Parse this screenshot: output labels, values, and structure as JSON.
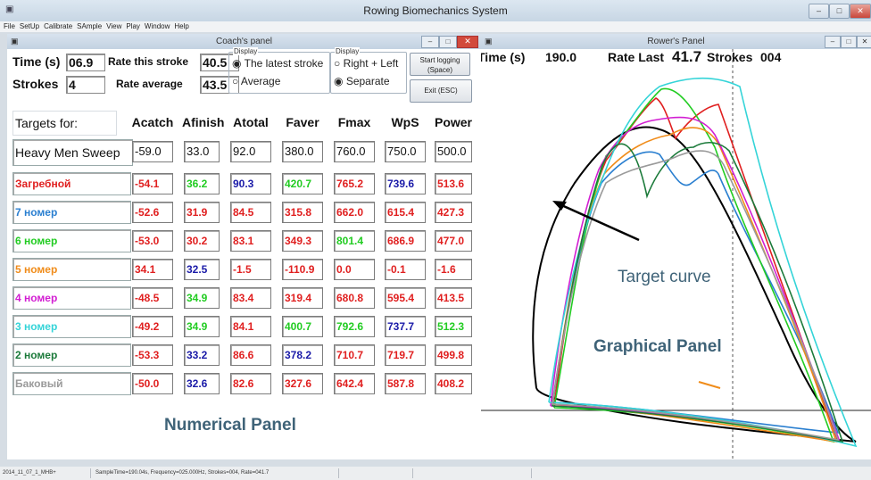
{
  "app": {
    "title": "Rowing Biomechanics System"
  },
  "menu": [
    "File",
    "SetUp",
    "Calibrate",
    "SAmple",
    "View",
    "Play",
    "Window",
    "Help"
  ],
  "coach": {
    "title": "Coach's panel",
    "time_label": "Time (s)",
    "time_value": "06.9",
    "strokes_label": "Strokes",
    "strokes_value": "4",
    "rate_this_label": "Rate this stroke",
    "rate_this_value": "40.5",
    "rate_avg_label": "Rate average",
    "rate_avg_value": "43.5",
    "display1": {
      "caption": "Display",
      "options": [
        "The latest stroke",
        "Average"
      ],
      "selected": 0
    },
    "display2": {
      "caption": "Display",
      "options": [
        "Right + Left",
        "Separate"
      ],
      "selected": 1
    },
    "start_button": "Start logging (Space)",
    "exit_button": "Exit (ESC)",
    "table": {
      "targets_label": "Targets for:",
      "columns": [
        "Acatch",
        "Afinish",
        "Atotal",
        "Faver",
        "Fmax",
        "WpS",
        "Power"
      ],
      "target_row": {
        "label": "Heavy Men Sweep",
        "values": [
          "-59.0",
          "33.0",
          "92.0",
          "380.0",
          "760.0",
          "750.0",
          "500.0"
        ]
      },
      "rows": [
        {
          "label": "Загребной",
          "label_color": "#e02020",
          "values": [
            "-54.1",
            "36.2",
            "90.3",
            "420.7",
            "765.2",
            "739.6",
            "513.6"
          ],
          "colors": [
            "#e02020",
            "#22cc22",
            "#1a1aa8",
            "#22cc22",
            "#e02020",
            "#1a1aa8",
            "#e02020"
          ]
        },
        {
          "label": "7 номер",
          "label_color": "#2a7fd0",
          "values": [
            "-52.6",
            "31.9",
            "84.5",
            "315.8",
            "662.0",
            "615.4",
            "427.3"
          ],
          "colors": [
            "#e02020",
            "#e02020",
            "#e02020",
            "#e02020",
            "#e02020",
            "#e02020",
            "#e02020"
          ]
        },
        {
          "label": "6 номер",
          "label_color": "#22cc22",
          "values": [
            "-53.0",
            "30.2",
            "83.1",
            "349.3",
            "801.4",
            "686.9",
            "477.0"
          ],
          "colors": [
            "#e02020",
            "#e02020",
            "#e02020",
            "#e02020",
            "#22cc22",
            "#e02020",
            "#e02020"
          ]
        },
        {
          "label": "5 номер",
          "label_color": "#f08c1a",
          "values": [
            "34.1",
            "32.5",
            "-1.5",
            "-110.9",
            "0.0",
            "-0.1",
            "-1.6"
          ],
          "colors": [
            "#e02020",
            "#1a1aa8",
            "#e02020",
            "#e02020",
            "#e02020",
            "#e02020",
            "#e02020"
          ]
        },
        {
          "label": "4 номер",
          "label_color": "#d21ed2",
          "values": [
            "-48.5",
            "34.9",
            "83.4",
            "319.4",
            "680.8",
            "595.4",
            "413.5"
          ],
          "colors": [
            "#e02020",
            "#22cc22",
            "#e02020",
            "#e02020",
            "#e02020",
            "#e02020",
            "#e02020"
          ]
        },
        {
          "label": "3 номер",
          "label_color": "#34d4d8",
          "values": [
            "-49.2",
            "34.9",
            "84.1",
            "400.7",
            "792.6",
            "737.7",
            "512.3"
          ],
          "colors": [
            "#e02020",
            "#22cc22",
            "#e02020",
            "#22cc22",
            "#22cc22",
            "#1a1aa8",
            "#22cc22"
          ]
        },
        {
          "label": "2 номер",
          "label_color": "#1b7a3a",
          "values": [
            "-53.3",
            "33.2",
            "86.6",
            "378.2",
            "710.7",
            "719.7",
            "499.8"
          ],
          "colors": [
            "#e02020",
            "#1a1aa8",
            "#e02020",
            "#1a1aa8",
            "#e02020",
            "#e02020",
            "#e02020"
          ]
        },
        {
          "label": "Баковый",
          "label_color": "#9a9a9a",
          "values": [
            "-50.0",
            "32.6",
            "82.6",
            "327.6",
            "642.4",
            "587.8",
            "408.2"
          ],
          "colors": [
            "#e02020",
            "#1a1aa8",
            "#e02020",
            "#e02020",
            "#e02020",
            "#e02020",
            "#e02020"
          ]
        }
      ]
    }
  },
  "rower": {
    "title": "Rower's Panel",
    "time_label": "Time (s)",
    "time_value": "190.0",
    "rate_label": "Rate Last",
    "rate_value": "41.7",
    "strokes_label": "Strokes",
    "strokes_value": "004"
  },
  "annotations": {
    "numerical": "Numerical Panel",
    "graphical": "Graphical Panel",
    "target_curve": "Target curve"
  },
  "status": {
    "left": "2014_11_07_1_MHB+",
    "mid": "SampleTime=190.04s, Frequency=025.000Hz, Strokes=004, Rate=041.7"
  },
  "curve_colors": [
    "#000000",
    "#e02020",
    "#2a7fd0",
    "#22cc22",
    "#f08c1a",
    "#d21ed2",
    "#34d4d8",
    "#1b7a3a",
    "#9a9a9a"
  ]
}
